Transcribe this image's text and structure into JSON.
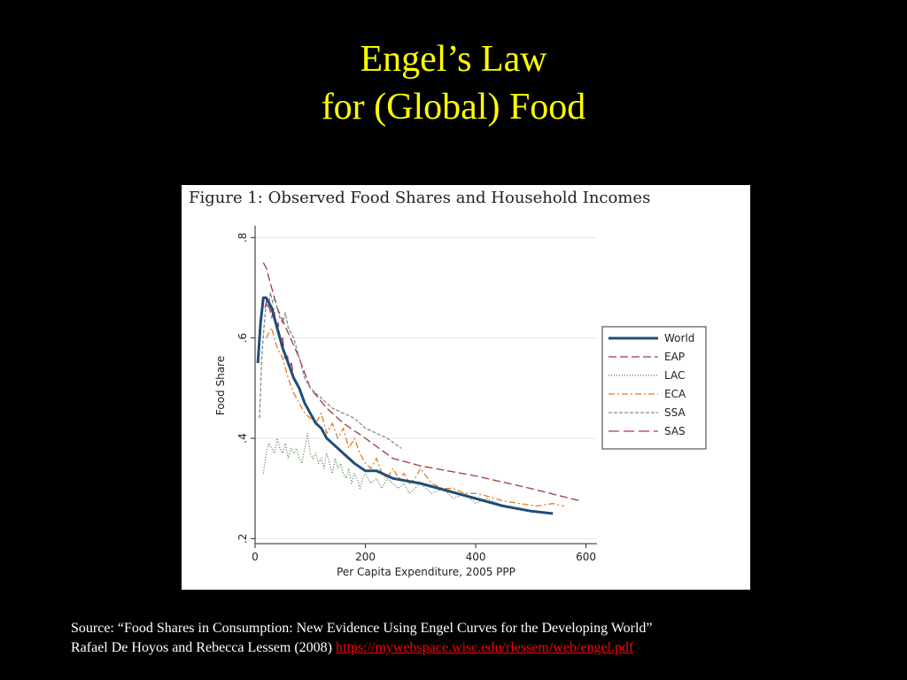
{
  "slide": {
    "title_line1": "Engel’s Law",
    "title_line2": "for (Global) Food",
    "source_line1": "Source: “Food Shares in Consumption: New Evidence Using Engel Curves for the Developing World”",
    "source_line2": "Rafael De Hoyos and Rebecca Lessem (2008)",
    "source_link": "https://mywebspace.wisc.edu/rlessem/web/engel.pdf"
  },
  "colors": {
    "background": "#000000",
    "title": "#ffff00",
    "link": "#ff0000"
  },
  "chart_data": {
    "type": "line",
    "title": "Figure 1:  Observed Food Shares and Household Incomes",
    "xlabel": "Per Capita Expenditure, 2005 PPP",
    "ylabel": "Food Share",
    "xlim": [
      0,
      620
    ],
    "ylim": [
      0.19,
      0.82
    ],
    "xticks": [
      0,
      200,
      400,
      600
    ],
    "yticks": [
      0.2,
      0.4,
      0.6,
      0.8
    ],
    "ytick_labels": [
      ".2",
      ".4",
      ".6",
      ".8"
    ],
    "grid": true,
    "legend": "right",
    "series": [
      {
        "name": "World",
        "color": "#1f4e79",
        "dash": "",
        "width": 3,
        "x": [
          5,
          10,
          15,
          20,
          25,
          30,
          40,
          50,
          60,
          70,
          80,
          90,
          100,
          110,
          120,
          130,
          140,
          150,
          160,
          180,
          200,
          220,
          250,
          300,
          350,
          400,
          450,
          500,
          540
        ],
        "y": [
          0.55,
          0.63,
          0.68,
          0.68,
          0.67,
          0.66,
          0.62,
          0.58,
          0.55,
          0.52,
          0.5,
          0.47,
          0.45,
          0.43,
          0.42,
          0.4,
          0.39,
          0.38,
          0.37,
          0.35,
          0.335,
          0.335,
          0.32,
          0.31,
          0.295,
          0.28,
          0.265,
          0.255,
          0.25
        ]
      },
      {
        "name": "EAP",
        "color": "#a0393b",
        "dash": "9 4",
        "width": 1.3,
        "x": [
          15,
          20,
          30,
          40,
          60,
          80,
          100,
          130,
          160,
          200,
          250,
          300,
          400,
          500,
          590
        ],
        "y": [
          0.75,
          0.74,
          0.7,
          0.66,
          0.61,
          0.56,
          0.5,
          0.46,
          0.43,
          0.4,
          0.36,
          0.345,
          0.325,
          0.3,
          0.275
        ]
      },
      {
        "name": "LAC",
        "color": "#4a7a3a",
        "dash": "1 2",
        "width": 1.2,
        "x": [
          15,
          20,
          25,
          30,
          35,
          40,
          45,
          50,
          55,
          60,
          65,
          70,
          75,
          80,
          85,
          90,
          95,
          100,
          105,
          110,
          115,
          120,
          125,
          130,
          135,
          140,
          145,
          150,
          155,
          160,
          165,
          170,
          175,
          180,
          185,
          190,
          195,
          200,
          210,
          220,
          230,
          240,
          250,
          260,
          270,
          280,
          290,
          300,
          320,
          340,
          360,
          380,
          400,
          420,
          440
        ],
        "y": [
          0.33,
          0.37,
          0.39,
          0.38,
          0.37,
          0.4,
          0.38,
          0.37,
          0.39,
          0.36,
          0.38,
          0.37,
          0.38,
          0.36,
          0.35,
          0.38,
          0.41,
          0.37,
          0.36,
          0.37,
          0.35,
          0.36,
          0.34,
          0.37,
          0.35,
          0.33,
          0.36,
          0.34,
          0.35,
          0.33,
          0.32,
          0.34,
          0.31,
          0.33,
          0.32,
          0.3,
          0.32,
          0.33,
          0.31,
          0.32,
          0.3,
          0.32,
          0.31,
          0.3,
          0.31,
          0.29,
          0.3,
          0.31,
          0.29,
          0.3,
          0.28,
          0.29,
          0.27,
          0.28,
          0.27
        ]
      },
      {
        "name": "ECA",
        "color": "#e07b20",
        "dash": "7 3 2 3",
        "width": 1.3,
        "x": [
          20,
          25,
          30,
          35,
          40,
          50,
          60,
          70,
          80,
          90,
          100,
          110,
          120,
          130,
          140,
          150,
          160,
          170,
          180,
          190,
          200,
          210,
          220,
          230,
          240,
          250,
          260,
          270,
          280,
          290,
          300,
          320,
          340,
          360,
          380,
          400,
          420,
          450,
          480,
          510,
          540,
          560
        ],
        "y": [
          0.6,
          0.61,
          0.62,
          0.6,
          0.58,
          0.56,
          0.52,
          0.49,
          0.47,
          0.45,
          0.44,
          0.43,
          0.45,
          0.41,
          0.43,
          0.4,
          0.42,
          0.38,
          0.4,
          0.37,
          0.35,
          0.34,
          0.36,
          0.33,
          0.32,
          0.34,
          0.32,
          0.33,
          0.31,
          0.32,
          0.34,
          0.31,
          0.3,
          0.3,
          0.29,
          0.29,
          0.285,
          0.275,
          0.27,
          0.265,
          0.27,
          0.265
        ]
      },
      {
        "name": "SSA",
        "color": "#7f8c8d",
        "dash": "4 2",
        "width": 1.3,
        "x": [
          8,
          12,
          16,
          20,
          24,
          28,
          32,
          36,
          40,
          45,
          50,
          55,
          60,
          70,
          80,
          90,
          100,
          120,
          140,
          160,
          180,
          200,
          220,
          240,
          265
        ],
        "y": [
          0.44,
          0.56,
          0.62,
          0.67,
          0.66,
          0.69,
          0.67,
          0.68,
          0.66,
          0.64,
          0.63,
          0.65,
          0.62,
          0.6,
          0.56,
          0.52,
          0.5,
          0.48,
          0.46,
          0.45,
          0.44,
          0.42,
          0.41,
          0.4,
          0.38
        ]
      },
      {
        "name": "SAS",
        "color": "#c0304a",
        "dash": "12 5",
        "width": 1.3,
        "x": [
          18,
          22,
          26,
          30,
          34,
          38,
          42,
          46,
          50,
          54,
          58,
          62,
          66,
          70
        ],
        "y": [
          0.66,
          0.68,
          0.66,
          0.64,
          0.66,
          0.62,
          0.63,
          0.59,
          0.6,
          0.56,
          0.57,
          0.54,
          0.55,
          0.52
        ]
      }
    ]
  }
}
